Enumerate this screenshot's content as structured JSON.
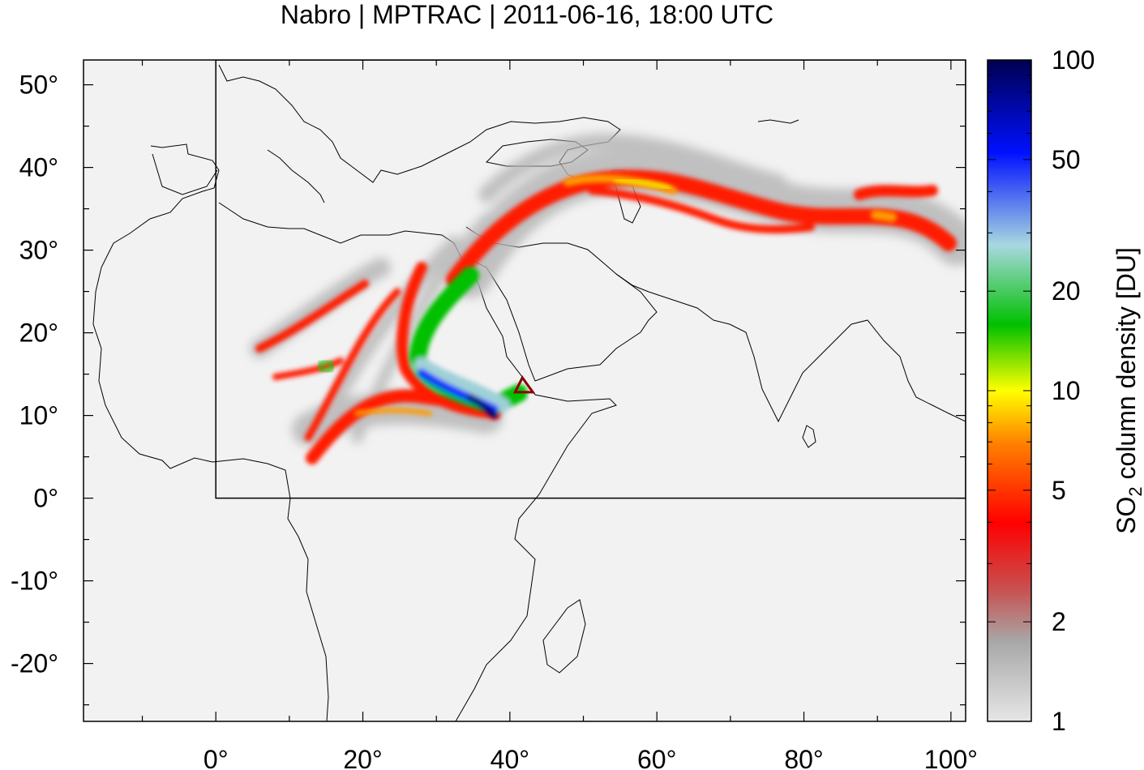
{
  "title": "Nabro | MPTRAC | 2011-06-16, 18:00 UTC",
  "map": {
    "lon_range": [
      -18,
      102
    ],
    "lat_range": [
      -27,
      53
    ],
    "x_ticks": [
      {
        "value": 0,
        "label": "0°"
      },
      {
        "value": 20,
        "label": "20°"
      },
      {
        "value": 40,
        "label": "40°"
      },
      {
        "value": 60,
        "label": "60°"
      },
      {
        "value": 80,
        "label": "80°"
      },
      {
        "value": 100,
        "label": "100°"
      }
    ],
    "y_ticks": [
      {
        "value": 50,
        "label": "50°"
      },
      {
        "value": 40,
        "label": "40°"
      },
      {
        "value": 30,
        "label": "30°"
      },
      {
        "value": 20,
        "label": "20°"
      },
      {
        "value": 10,
        "label": "10°"
      },
      {
        "value": 0,
        "label": "0°"
      },
      {
        "value": -10,
        "label": "-10°"
      },
      {
        "value": -20,
        "label": "-20°"
      }
    ],
    "region_box": {
      "lon_min": 0,
      "lon_max": 102,
      "lat_min": 0,
      "lat_max": 53
    },
    "volcano": {
      "name": "Nabro",
      "lon": 41.7,
      "lat": 13.4
    }
  },
  "colorbar": {
    "label_prefix": "SO",
    "label_sub": "2",
    "label_suffix": " column density [DU]",
    "scale": "log",
    "range": [
      1,
      100
    ],
    "ticks": [
      {
        "value": 100,
        "label": "100"
      },
      {
        "value": 50,
        "label": "50"
      },
      {
        "value": 20,
        "label": "20"
      },
      {
        "value": 10,
        "label": "10"
      },
      {
        "value": 5,
        "label": "5"
      },
      {
        "value": 2,
        "label": "2"
      },
      {
        "value": 1,
        "label": "1"
      }
    ],
    "colors": [
      "#e6e6e6",
      "#a0a0a0",
      "#d04848",
      "#ff0000",
      "#ff7a00",
      "#ffff00",
      "#00c800",
      "#a0d8e8",
      "#0000ff",
      "#000050"
    ]
  }
}
